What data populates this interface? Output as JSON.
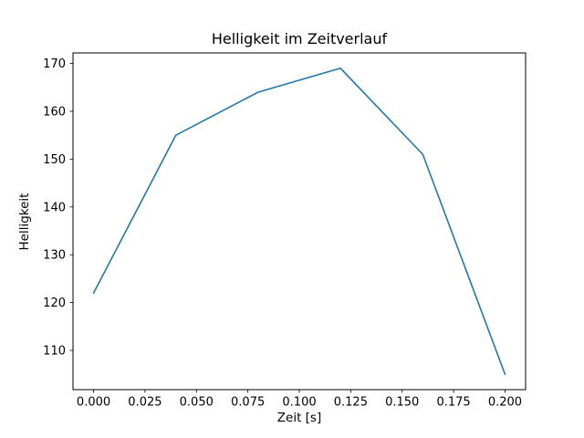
{
  "chart_data": {
    "type": "line",
    "title": "Helligkeit im Zeitverlauf",
    "xlabel": "Zeit [s]",
    "ylabel": "Helligkeit",
    "x": [
      0.0,
      0.04,
      0.08,
      0.12,
      0.16,
      0.2
    ],
    "series": [
      {
        "name": "Helligkeit",
        "values": [
          122,
          155,
          164,
          169,
          151,
          105
        ]
      }
    ],
    "xlim": [
      -0.01,
      0.21
    ],
    "ylim": [
      101.8,
      172.2
    ],
    "xticks": [
      0.0,
      0.025,
      0.05,
      0.075,
      0.1,
      0.125,
      0.15,
      0.175,
      0.2
    ],
    "xtick_labels": [
      "0.000",
      "0.025",
      "0.050",
      "0.075",
      "0.100",
      "0.125",
      "0.150",
      "0.175",
      "0.200"
    ],
    "yticks": [
      110,
      120,
      130,
      140,
      150,
      160,
      170
    ],
    "ytick_labels": [
      "110",
      "120",
      "130",
      "140",
      "150",
      "160",
      "170"
    ],
    "line_color": "#1f77b4",
    "axis_color": "#000000",
    "background_color": "#ffffff",
    "grid": false,
    "legend_position": "none"
  }
}
